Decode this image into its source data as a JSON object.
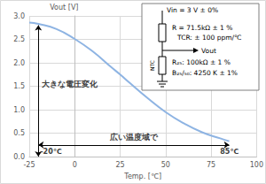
{
  "chart_data": {
    "type": "line",
    "x_label": "Temp. [℃]",
    "y_label": "Vout [V]",
    "x": [
      -25,
      -20,
      -10,
      0,
      10,
      20,
      25,
      30,
      40,
      50,
      60,
      70,
      80,
      85
    ],
    "series": [
      {
        "name": "Vout",
        "color": "#8eb4e3",
        "values": [
          2.86,
          2.83,
          2.72,
          2.51,
          2.24,
          1.91,
          1.75,
          1.58,
          1.25,
          0.95,
          0.71,
          0.52,
          0.39,
          0.33
        ]
      }
    ],
    "xlim": [
      -25,
      100
    ],
    "xticks": [
      -25,
      0,
      25,
      50,
      75,
      100
    ],
    "ylim": [
      0,
      3
    ],
    "yticks": [
      {
        "value": 0,
        "label": "0.0"
      },
      0.5,
      {
        "value": 1,
        "label": "1.0"
      },
      1.5,
      {
        "value": 2,
        "label": "2.0"
      },
      2.5,
      {
        "value": 3,
        "label": "3.0"
      }
    ],
    "grid": true,
    "arrows": [
      {
        "label": "大きな電圧変化",
        "x": [
          -20,
          -20
        ],
        "y": [
          0,
          2.8
        ]
      },
      {
        "label": "広い温度域で",
        "x": [
          -20,
          85
        ],
        "y": [
          0.25,
          0.25
        ]
      }
    ],
    "annotations": [
      "-20℃",
      "85℃"
    ],
    "circuit_labels": [
      "Vin = 3 V ± 0%",
      "R = 71.5kΩ ± 1 %",
      "TCR: ± 100 ppm/℃",
      "Vout",
      "NTC",
      "R₂₅: 100kΩ ± 1 %",
      "B₂₅/₅₀: 4250 K ± 1%"
    ]
  }
}
